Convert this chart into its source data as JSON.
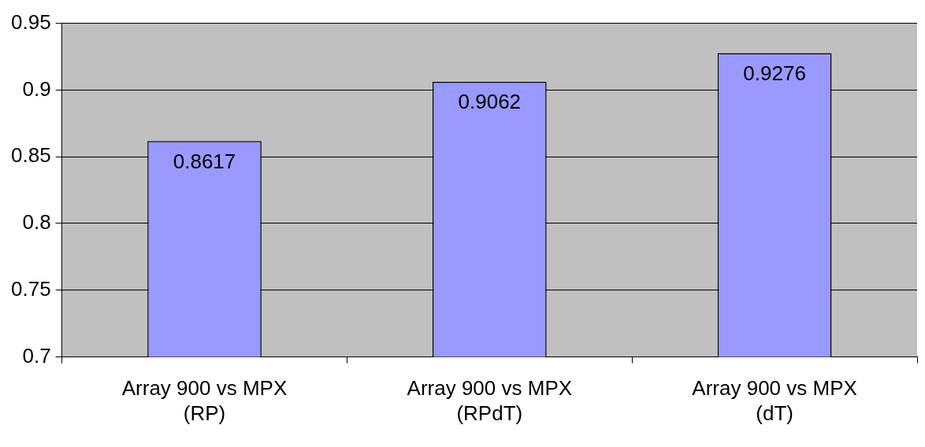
{
  "chart_data": {
    "type": "bar",
    "categories": [
      "Array 900 vs MPX (RP)",
      "Array 900 vs MPX (RPdT)",
      "Array 900 vs MPX (dT)"
    ],
    "values": [
      0.8617,
      0.9062,
      0.9276
    ],
    "color": "#9999ff",
    "ylim": [
      0.7,
      0.95
    ],
    "yticks": [
      0.7,
      0.75,
      0.8,
      0.85,
      0.9,
      0.95
    ],
    "grid": "y",
    "legend": false,
    "data_labels": true
  }
}
